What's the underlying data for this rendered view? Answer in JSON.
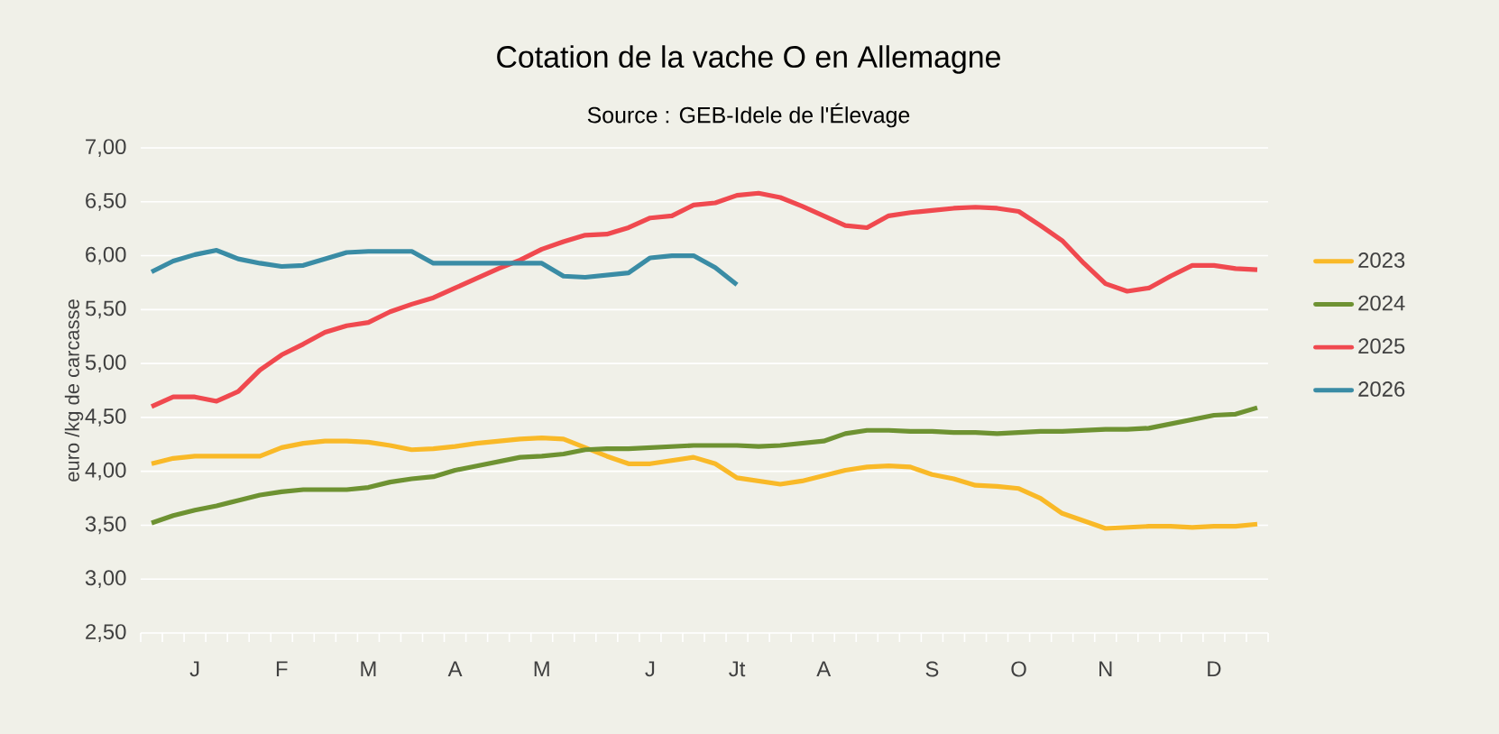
{
  "chart_data": {
    "type": "line",
    "title": "Cotation de la vache O en Allemagne",
    "subtitle": "Source : GEB-Idele de l'Élevage",
    "ylabel": "euro /kg de carcasse",
    "categories": [
      null,
      null,
      "J",
      null,
      null,
      null,
      "F",
      null,
      null,
      null,
      "M",
      null,
      null,
      null,
      "A",
      null,
      null,
      null,
      "M",
      null,
      null,
      null,
      null,
      "J",
      null,
      null,
      null,
      "Jt",
      null,
      null,
      null,
      "A",
      null,
      null,
      null,
      null,
      "S",
      null,
      null,
      null,
      "O",
      null,
      null,
      null,
      "N",
      null,
      null,
      null,
      null,
      "D",
      null,
      null
    ],
    "series": [
      {
        "name": "2023",
        "color": "#f9b928",
        "values": [
          4.07,
          4.12,
          4.14,
          4.14,
          4.14,
          4.14,
          4.22,
          4.26,
          4.28,
          4.28,
          4.27,
          4.24,
          4.2,
          4.21,
          4.23,
          4.26,
          4.28,
          4.3,
          4.31,
          4.3,
          4.22,
          4.14,
          4.07,
          4.07,
          4.1,
          4.13,
          4.07,
          3.94,
          3.91,
          3.88,
          3.91,
          3.96,
          4.01,
          4.04,
          4.05,
          4.04,
          3.97,
          3.93,
          3.87,
          3.86,
          3.84,
          3.75,
          3.61,
          3.54,
          3.47,
          3.48,
          3.49,
          3.49,
          3.48,
          3.49,
          3.49,
          3.51
        ]
      },
      {
        "name": "2024",
        "color": "#6e9232",
        "values": [
          3.52,
          3.59,
          3.64,
          3.68,
          3.73,
          3.78,
          3.81,
          3.83,
          3.83,
          3.83,
          3.85,
          3.9,
          3.93,
          3.95,
          4.01,
          4.05,
          4.09,
          4.13,
          4.14,
          4.16,
          4.2,
          4.21,
          4.21,
          4.22,
          4.23,
          4.24,
          4.24,
          4.24,
          4.23,
          4.24,
          4.26,
          4.28,
          4.35,
          4.38,
          4.38,
          4.37,
          4.37,
          4.36,
          4.36,
          4.35,
          4.36,
          4.37,
          4.37,
          4.38,
          4.39,
          4.39,
          4.4,
          4.44,
          4.48,
          4.52,
          4.53,
          4.59
        ]
      },
      {
        "name": "2025",
        "color": "#f0494f",
        "values": [
          4.6,
          4.69,
          4.69,
          4.65,
          4.74,
          4.94,
          5.08,
          5.18,
          5.29,
          5.35,
          5.38,
          5.48,
          5.55,
          5.61,
          5.7,
          5.79,
          5.88,
          5.96,
          6.06,
          6.13,
          6.19,
          6.2,
          6.26,
          6.35,
          6.37,
          6.47,
          6.49,
          6.56,
          6.58,
          6.54,
          6.46,
          6.37,
          6.28,
          6.26,
          6.37,
          6.4,
          6.42,
          6.44,
          6.45,
          6.44,
          6.41,
          6.28,
          6.14,
          5.93,
          5.74,
          5.67,
          5.7,
          5.81,
          5.91,
          5.91,
          5.88,
          5.87
        ]
      },
      {
        "name": "2026",
        "color": "#3a8ca5",
        "values": [
          5.85,
          5.95,
          6.01,
          6.05,
          5.97,
          5.93,
          5.9,
          5.91,
          5.97,
          6.03,
          6.04,
          6.04,
          6.04,
          5.93,
          5.93,
          5.93,
          5.93,
          5.93,
          5.93,
          5.81,
          5.8,
          5.82,
          5.84,
          5.98,
          6.0,
          6.0,
          5.89,
          5.73,
          null,
          null,
          null,
          null,
          null,
          null,
          null,
          null,
          null,
          null,
          null,
          null,
          null,
          null,
          null,
          null,
          null,
          null,
          null,
          null,
          null,
          null,
          null,
          null
        ]
      }
    ],
    "ylim": [
      2.5,
      7.0
    ],
    "yticks": [
      {
        "value": 2.5,
        "label": "2,50"
      },
      {
        "value": 3.0,
        "label": "3,00"
      },
      {
        "value": 3.5,
        "label": "3,50"
      },
      {
        "value": 4.0,
        "label": "4,00"
      },
      {
        "value": 4.5,
        "label": "4,50"
      },
      {
        "value": 5.0,
        "label": "5,00"
      },
      {
        "value": 5.5,
        "label": "5,50"
      },
      {
        "value": 6.0,
        "label": "6,00"
      },
      {
        "value": 6.5,
        "label": "6,50"
      },
      {
        "value": 7.0,
        "label": "7,00"
      }
    ],
    "grid": "y",
    "legend": "right",
    "marker": "none",
    "line_style": "solid"
  }
}
